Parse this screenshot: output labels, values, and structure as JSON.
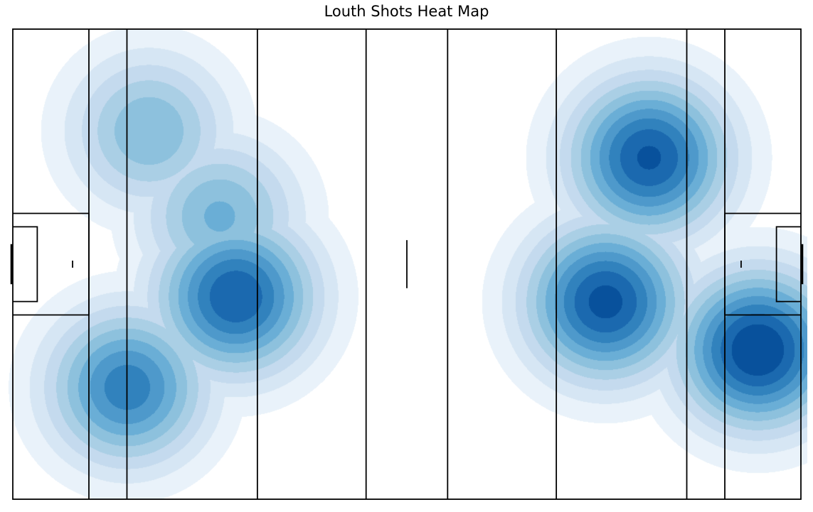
{
  "chart_data": {
    "type": "heatmap",
    "title": "Louth Shots Heat Map",
    "xlabel": "",
    "ylabel": "",
    "xlim": [
      0,
      145
    ],
    "ylim": [
      0,
      88
    ],
    "grid": false,
    "legend": "none",
    "colormap": "Blues",
    "levels": 10,
    "pitch": {
      "length": 145,
      "width": 88,
      "vertical_lines_x": [
        14,
        21,
        45,
        65,
        80,
        100,
        124,
        131
      ],
      "large_rect_y": [
        34.5,
        53.5
      ],
      "small_rect": {
        "depth": 4.5,
        "y": [
          37,
          51
        ]
      },
      "goal_y": [
        40.25,
        47.75
      ],
      "penalty_spot_x": [
        11,
        134
      ],
      "center_line_y": [
        39.5,
        48.5
      ]
    },
    "density_peaks": [
      {
        "x": 25,
        "y": 69,
        "intensity": 0.54
      },
      {
        "x": 38,
        "y": 53,
        "intensity": 0.56
      },
      {
        "x": 41,
        "y": 38,
        "intensity": 0.9
      },
      {
        "x": 21,
        "y": 21,
        "intensity": 0.78
      },
      {
        "x": 117,
        "y": 64,
        "intensity": 0.92
      },
      {
        "x": 109,
        "y": 37,
        "intensity": 0.94
      },
      {
        "x": 137,
        "y": 28,
        "intensity": 1.0
      }
    ]
  },
  "colors": {
    "pitch_lines": "#000000",
    "levels": [
      "#ffffff",
      "#e9f2fa",
      "#d6e6f4",
      "#c4daee",
      "#aacfe5",
      "#8dc1dd",
      "#6aaed6",
      "#4e99cb",
      "#3182bd",
      "#1b69af",
      "#08519c"
    ]
  }
}
